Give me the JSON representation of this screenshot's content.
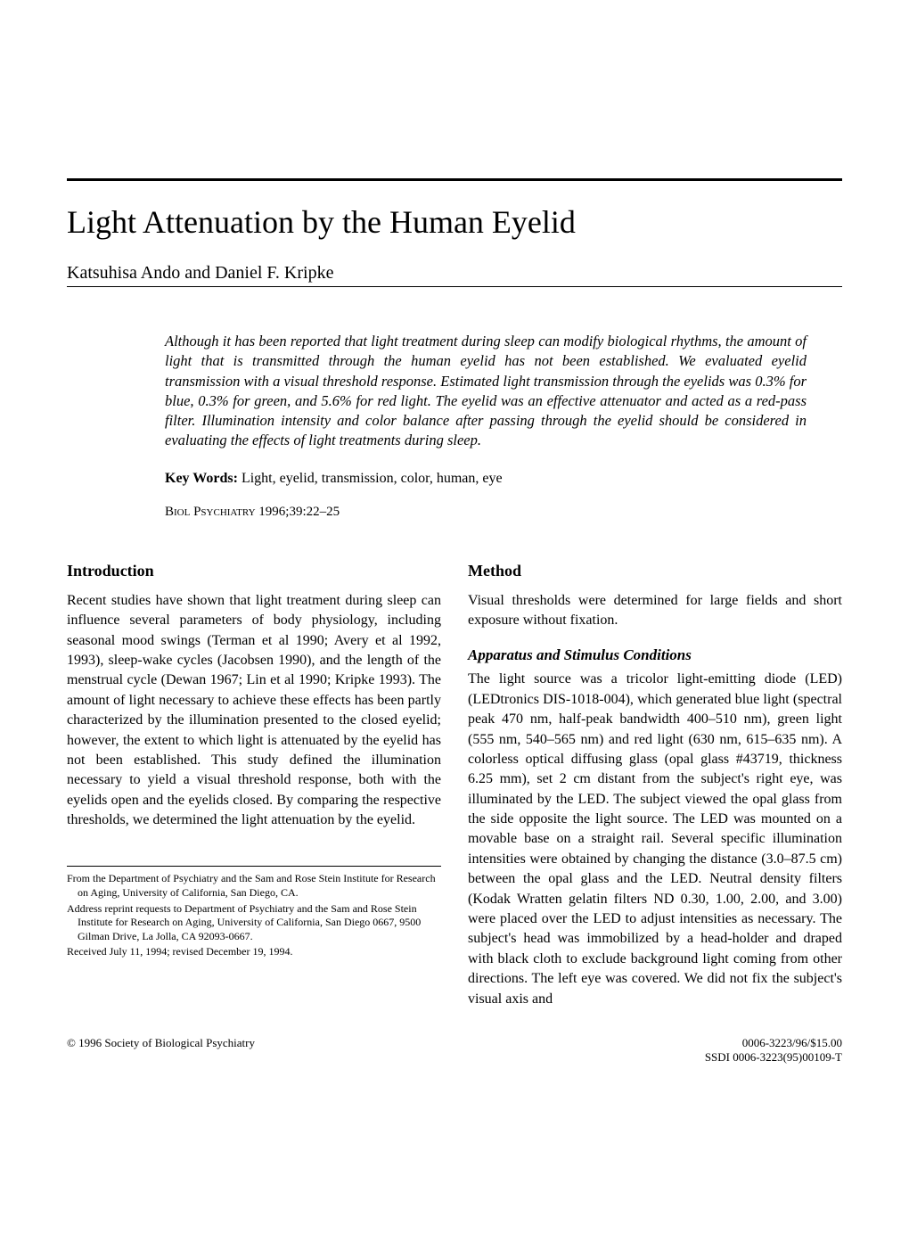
{
  "title": "Light Attenuation by the Human Eyelid",
  "authors": "Katsuhisa Ando and Daniel F. Kripke",
  "abstract": "Although it has been reported that light treatment during sleep can modify biological rhythms, the amount of light that is transmitted through the human eyelid has not been established. We evaluated eyelid transmission with a visual threshold response. Estimated light transmission through the eyelids was 0.3% for blue, 0.3% for green, and 5.6% for red light. The eyelid was an effective attenuator and acted as a red-pass filter. Illumination intensity and color balance after passing through the eyelid should be considered in evaluating the effects of light treatments during sleep.",
  "keywords_label": "Key Words:",
  "keywords": " Light, eyelid, transmission, color, human, eye",
  "citation_journal": "Biol Psychiatry",
  "citation_ref": " 1996;39:22–25",
  "left_col": {
    "heading": "Introduction",
    "body": "Recent studies have shown that light treatment during sleep can influence several parameters of body physiology, including seasonal mood swings (Terman et al 1990; Avery et al 1992, 1993), sleep-wake cycles (Jacobsen 1990), and the length of the menstrual cycle (Dewan 1967; Lin et al 1990; Kripke 1993). The amount of light necessary to achieve these effects has been partly characterized by the illumination presented to the closed eyelid; however, the extent to which light is attenuated by the eyelid has not been established. This study defined the illumination necessary to yield a visual threshold response, both with the eyelids open and the eyelids closed. By comparing the respective thresholds, we determined the light attenuation by the eyelid.",
    "footnote1": "From the Department of Psychiatry and the Sam and Rose Stein Institute for Research on Aging, University of California, San Diego, CA.",
    "footnote2": "Address reprint requests to Department of Psychiatry and the Sam and Rose Stein Institute for Research on Aging, University of California, San Diego 0667, 9500 Gilman Drive, La Jolla, CA 92093-0667.",
    "footnote3": "Received July 11, 1994; revised December 19, 1994."
  },
  "right_col": {
    "heading": "Method",
    "intro": "Visual thresholds were determined for large fields and short exposure without fixation.",
    "subheading": "Apparatus and Stimulus Conditions",
    "body": "The light source was a tricolor light-emitting diode (LED) (LEDtronics DIS-1018-004), which generated blue light (spectral peak 470 nm, half-peak bandwidth 400–510 nm), green light (555 nm, 540–565 nm) and red light (630 nm, 615–635 nm). A colorless optical diffusing glass (opal glass #43719, thickness 6.25 mm), set 2 cm distant from the subject's right eye, was illuminated by the LED. The subject viewed the opal glass from the side opposite the light source. The LED was mounted on a movable base on a straight rail. Several specific illumination intensities were obtained by changing the distance (3.0–87.5 cm) between the opal glass and the LED. Neutral density filters (Kodak Wratten gelatin filters ND 0.30, 1.00, 2.00, and 3.00) were placed over the LED to adjust intensities as necessary. The subject's head was immobilized by a head-holder and draped with black cloth to exclude background light coming from other directions. The left eye was covered. We did not fix the subject's visual axis and"
  },
  "footer": {
    "copyright": "© 1996 Society of Biological Psychiatry",
    "issn": "0006-3223/96/$15.00",
    "ssdi": "SSDI 0006-3223(95)00109-T"
  }
}
